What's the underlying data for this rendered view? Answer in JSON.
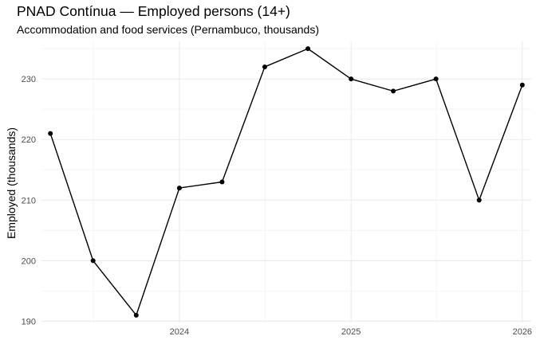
{
  "title": "PNAD Contínua — Employed persons (14+)",
  "subtitle": "Accommodation and food services (Pernambuco, thousands)",
  "chart_data": {
    "type": "line",
    "title": "PNAD Contínua — Employed persons (14+)",
    "subtitle": "Accommodation and food services (Pernambuco, thousands)",
    "xlabel": "",
    "ylabel": "Employed (thousands)",
    "x": [
      "2023-04-01",
      "2023-07-01",
      "2023-10-01",
      "2024-01-01",
      "2024-04-01",
      "2024-07-01",
      "2024-10-01",
      "2025-01-01",
      "2025-04-01",
      "2025-07-01",
      "2025-10-01",
      "2026-01-01"
    ],
    "values": [
      221,
      200,
      191,
      212,
      213,
      232,
      235,
      230,
      228,
      230,
      210,
      229
    ],
    "x_ticks": [
      "2024-01-01",
      "2025-01-01",
      "2026-01-01"
    ],
    "x_tick_labels": [
      "2024",
      "2025",
      "2026"
    ],
    "y_ticks": [
      190,
      200,
      210,
      220,
      230
    ],
    "ylim": [
      189.8,
      236.2
    ],
    "xlim": [
      "2023-03-13",
      "2026-01-20"
    ],
    "grid": true,
    "legend": "none",
    "colors": {
      "line": "#000000",
      "point": "#000000",
      "grid_major": "#ebebeb",
      "grid_minor": "#f5f5f5",
      "tick_text": "#4d4d4d",
      "background": "#ffffff"
    }
  }
}
